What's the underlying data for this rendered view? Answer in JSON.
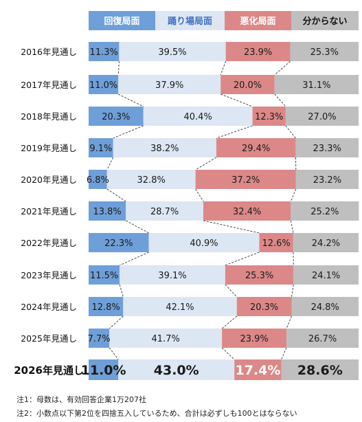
{
  "chart_data": {
    "type": "bar",
    "orientation": "horizontal",
    "stacked": true,
    "unit": "%",
    "categories": [
      "2016年見通し",
      "2017年見通し",
      "2018年見通し",
      "2019年見通し",
      "2020年見通し",
      "2021年見通し",
      "2022年見通し",
      "2023年見通し",
      "2024年見通し",
      "2025年見通し",
      "2026年見通し"
    ],
    "series": [
      {
        "name": "回復局面",
        "values": [
          11.3,
          11.0,
          20.3,
          9.1,
          6.8,
          13.8,
          22.3,
          11.5,
          12.8,
          7.7,
          11.0
        ]
      },
      {
        "name": "踊り場局面",
        "values": [
          39.5,
          37.9,
          40.4,
          38.2,
          32.8,
          28.7,
          40.9,
          39.1,
          42.1,
          41.7,
          43.0
        ]
      },
      {
        "name": "悪化局面",
        "values": [
          23.9,
          20.0,
          12.3,
          29.4,
          37.2,
          32.4,
          12.6,
          25.3,
          20.3,
          23.9,
          17.4
        ]
      },
      {
        "name": "分からない",
        "values": [
          25.3,
          31.1,
          27.0,
          23.3,
          23.2,
          25.2,
          24.2,
          24.1,
          24.8,
          26.7,
          28.6
        ]
      }
    ],
    "highlight_category": "2026年見通し",
    "legend_position": "top",
    "colors": {
      "recovery": "#6f9fd8",
      "plateau": "#dde6f3",
      "worsening": "#dc8888",
      "unknown": "#bfbfbf",
      "legend_plateau_text": "#3f6fc2"
    }
  },
  "notes": [
    "注1：母数は、有効回答企業1万207社",
    "注2：小数点以下第2位を四捨五入しているため、合計は必ずしも100とはならない"
  ]
}
